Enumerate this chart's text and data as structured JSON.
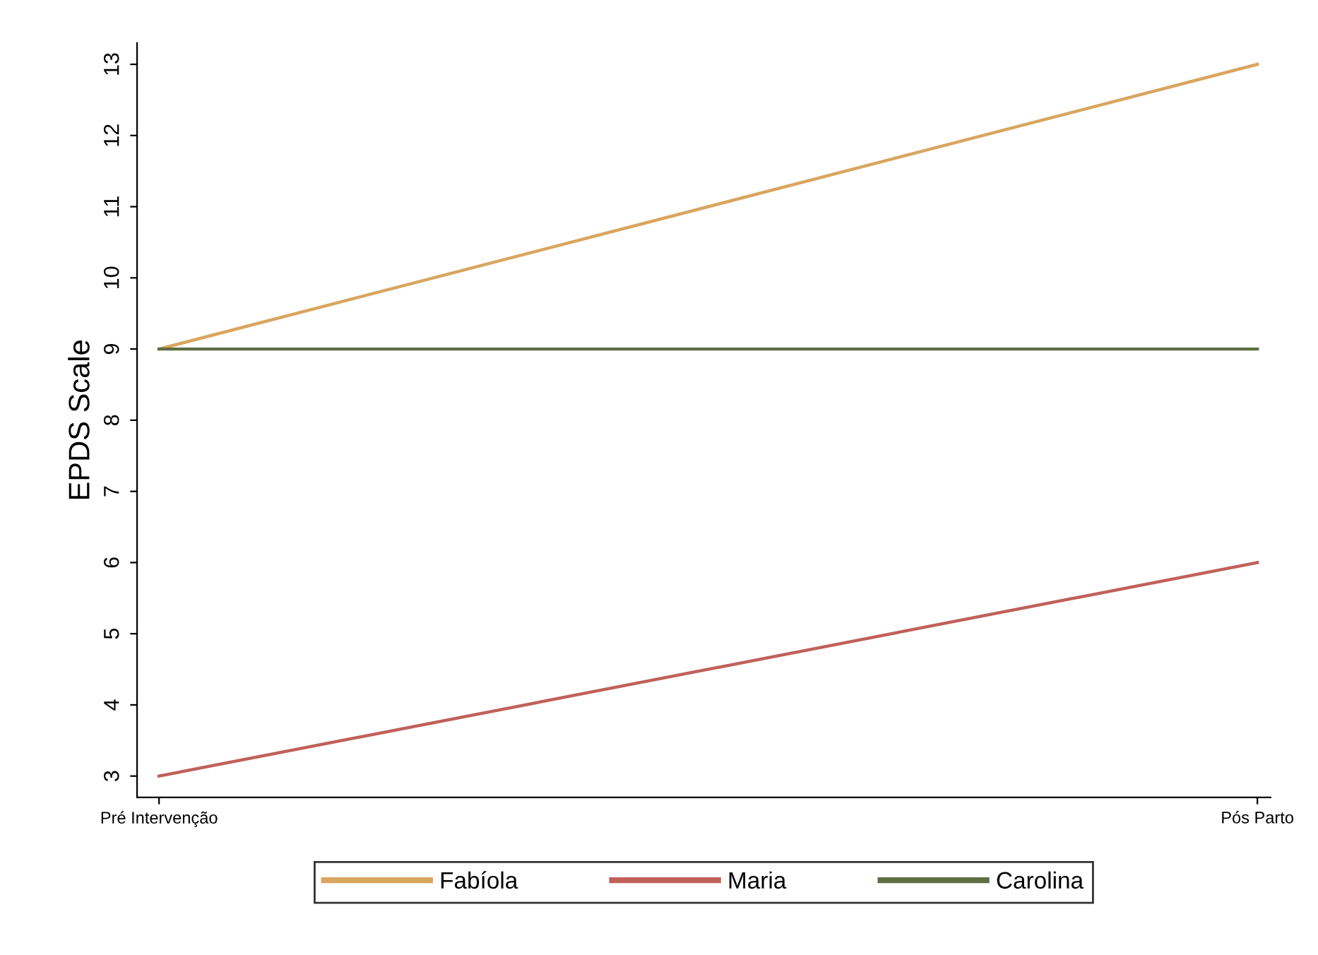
{
  "chart_data": {
    "type": "line",
    "ylabel": "EPDS Scale",
    "categories": [
      "Pré Intervenção",
      "Pós Parto"
    ],
    "series": [
      {
        "name": "Fabíola",
        "color": "#d9a55f",
        "values": [
          9,
          13
        ]
      },
      {
        "name": "Maria",
        "color": "#c0605a",
        "values": [
          3,
          6
        ]
      },
      {
        "name": "Carolina",
        "color": "#5f6e42",
        "values": [
          9,
          9
        ]
      }
    ],
    "ylim": [
      2.7,
      13.3
    ],
    "yticks": [
      3,
      4,
      5,
      6,
      7,
      8,
      9,
      10,
      11,
      12,
      13
    ],
    "grid": false,
    "legend": "bottom",
    "marker": "none",
    "line_style": "solid"
  }
}
